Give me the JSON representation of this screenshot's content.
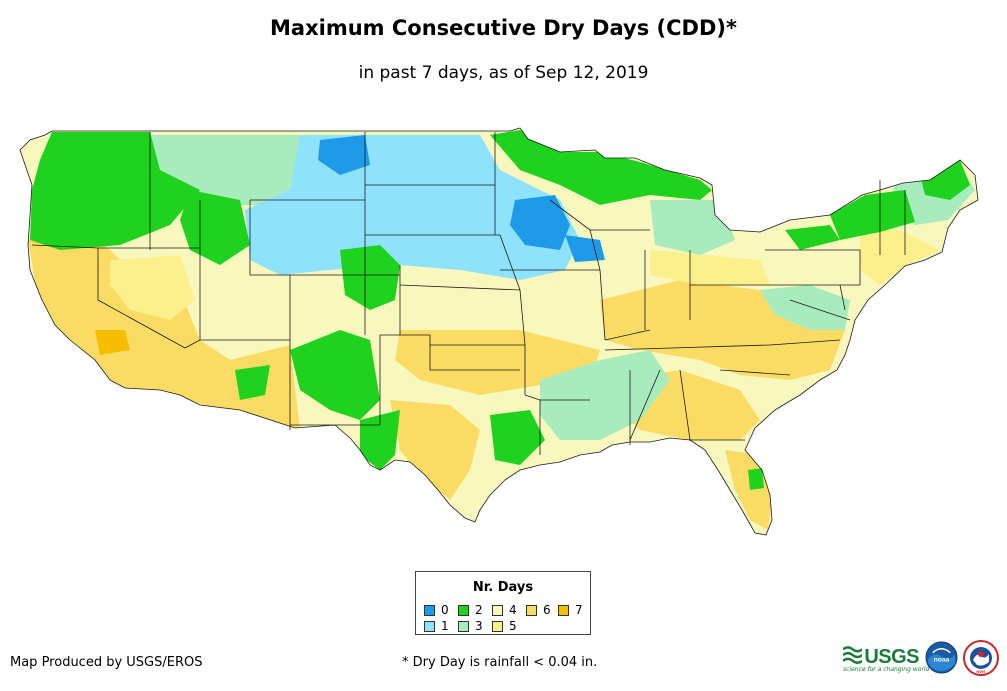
{
  "title": "Maximum Consecutive Dry Days (CDD)*",
  "subtitle": "in past 7 days, as of Sep 12, 2019",
  "legend": {
    "title": "Nr. Days",
    "items": [
      {
        "label": "0",
        "color": "#1e9be8"
      },
      {
        "label": "1",
        "color": "#8ee2fc"
      },
      {
        "label": "2",
        "color": "#1ed21e"
      },
      {
        "label": "3",
        "color": "#a8ecbe"
      },
      {
        "label": "4",
        "color": "#f8f8be"
      },
      {
        "label": "5",
        "color": "#fcf08c"
      },
      {
        "label": "6",
        "color": "#fadc64"
      },
      {
        "label": "7",
        "color": "#f5be00"
      }
    ]
  },
  "credit": "Map Produced by USGS/EROS",
  "footnote": "* Dry Day is rainfall < 0.04 in.",
  "logos": {
    "usgs": "USGS",
    "usgs_tagline": "science for a changing world",
    "noaa": "noaa",
    "nws": "NWS"
  },
  "map": {
    "region": "Contiguous United States",
    "border_color": "#1a1a1a"
  }
}
